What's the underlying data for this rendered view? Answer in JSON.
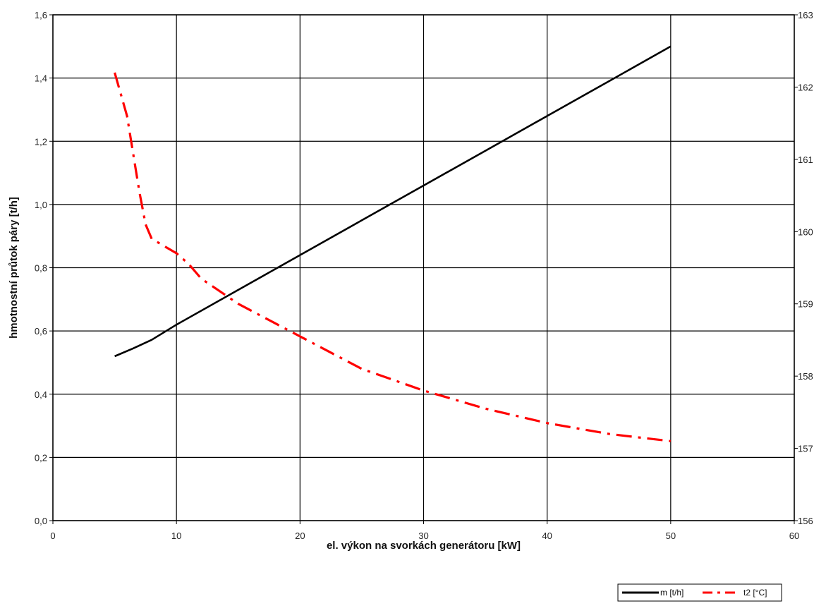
{
  "chart_data": {
    "type": "line",
    "title": "",
    "xlabel": "el. výkon na svorkách generátoru [kW]",
    "ylabel": "hmotnostní průtok páry [t/h]",
    "y2label": "",
    "xlim": [
      0,
      60
    ],
    "ylim": [
      0,
      1.6
    ],
    "y2lim": [
      156,
      163
    ],
    "xticks": [
      "0",
      "10",
      "20",
      "30",
      "40",
      "50",
      "60"
    ],
    "yticks": [
      "0,0",
      "0,2",
      "0,4",
      "0,6",
      "0,8",
      "1,0",
      "1,2",
      "1,4",
      "1,6"
    ],
    "y2ticks": [
      "156",
      "157",
      "158",
      "159",
      "160",
      "161",
      "162",
      "163"
    ],
    "grid": true,
    "legend_position": "bottom-right",
    "series": [
      {
        "name": "m [t/h]",
        "axis": "left",
        "color": "#000000",
        "style": "solid",
        "x": [
          5,
          6.5,
          8,
          10,
          15,
          20,
          25,
          30,
          35,
          40,
          45,
          50
        ],
        "y": [
          0.52,
          0.545,
          0.572,
          0.62,
          0.73,
          0.84,
          0.95,
          1.06,
          1.17,
          1.28,
          1.39,
          1.5
        ]
      },
      {
        "name": "t2 [°C]",
        "axis": "right",
        "color": "#ff0000",
        "style": "dash-dot",
        "x": [
          5,
          6,
          7,
          7.5,
          8,
          9,
          10,
          11,
          12,
          15,
          20,
          25,
          30,
          35,
          40,
          45,
          50
        ],
        "y": [
          162.2,
          161.6,
          160.55,
          160.1,
          159.9,
          159.8,
          159.7,
          159.55,
          159.35,
          159.0,
          158.55,
          158.1,
          157.8,
          157.55,
          157.35,
          157.2,
          157.1
        ]
      }
    ]
  }
}
